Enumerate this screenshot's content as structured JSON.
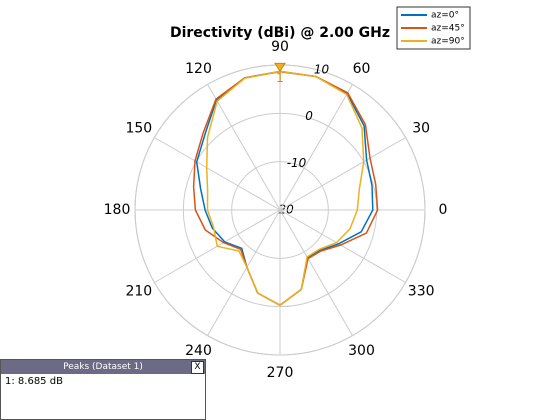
{
  "chart_data": {
    "type": "polar",
    "title": "Directivity (dBi) @ 2.00 GHz",
    "theta": [
      0,
      15,
      30,
      45,
      60,
      75,
      90,
      105,
      120,
      135,
      150,
      165,
      180,
      195,
      210,
      225,
      240,
      255,
      270,
      285,
      300,
      315,
      330,
      345
    ],
    "series": [
      {
        "name": "az=0°",
        "color": "#0072bd",
        "values": [
          -0.8,
          -0.3,
          0.7,
          4.6,
          7.8,
          8.6,
          8.685,
          8.3,
          6.3,
          2.0,
          -0.1,
          -3.0,
          -4.5,
          -5.5,
          -6.8,
          -8.8,
          -6.3,
          -2.2,
          -0.3,
          -3.0,
          -8.6,
          -8.2,
          -6.0,
          -2.6
        ]
      },
      {
        "name": "az=45°",
        "color": "#d95319",
        "values": [
          0.2,
          0.5,
          1.5,
          5.0,
          8.0,
          8.6,
          8.6,
          8.3,
          6.5,
          2.5,
          0.3,
          -1.5,
          -2.5,
          -4.0,
          -6.5,
          -8.5,
          -6.3,
          -2.2,
          -0.3,
          -3.0,
          -8.4,
          -8.0,
          -5.5,
          -1.5
        ]
      },
      {
        "name": "az=90°",
        "color": "#edb120",
        "values": [
          -4.0,
          -3.0,
          0.0,
          4.0,
          7.6,
          8.6,
          8.685,
          8.2,
          6.0,
          1.2,
          -2.5,
          -4.5,
          -5.0,
          -5.8,
          -5.0,
          -8.0,
          -6.3,
          -2.2,
          -0.3,
          -3.0,
          -8.8,
          -8.5,
          -6.5,
          -5.0
        ]
      }
    ],
    "rlim": [
      -20,
      10
    ],
    "rticks": [
      -20,
      -10,
      0,
      10
    ],
    "thetaticks": [
      0,
      30,
      60,
      90,
      120,
      150,
      180,
      210,
      240,
      270,
      300,
      330
    ],
    "peak": {
      "theta": 90,
      "value": 8.685,
      "label": "1",
      "color": "#edb120"
    },
    "legend": "upper-right",
    "grid": true
  },
  "peaks": {
    "title": "Peaks (Dataset 1)",
    "close": "X",
    "entries": [
      "1: 8.685 dB"
    ]
  }
}
